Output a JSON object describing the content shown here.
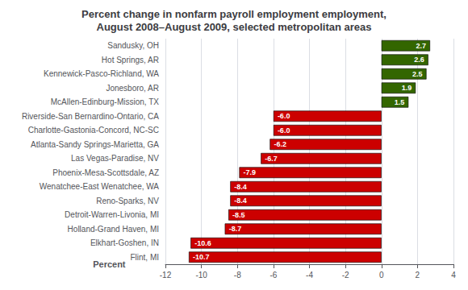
{
  "chart_data": {
    "type": "bar",
    "orientation": "horizontal",
    "title": "Percent change in nonfarm payroll employment employment,\nAugust 2008–August 2009, selected metropolitan areas",
    "xlabel": "Percent",
    "categories": [
      "Flint, MI",
      "Elkhart-Goshen, IN",
      "Holland-Grand Haven, MI",
      "Detroit-Warren-Livonia, MI",
      "Reno-Sparks, NV",
      "Wenatchee-East Wenatchee, WA",
      "Phoenix-Mesa-Scottsdale, AZ",
      "Las Vegas-Paradise, NV",
      "Atlanta-Sandy Springs-Marietta, GA",
      "Charlotte-Gastonia-Concord, NC-SC",
      "Riverside-San Bernardino-Ontario, CA",
      "McAllen-Edinburg-Mission, TX",
      "Jonesboro, AR",
      "Kennewick-Pasco-Richland, WA",
      "Hot Springs, AR",
      "Sandusky, OH"
    ],
    "values": [
      -10.7,
      -10.6,
      -8.7,
      -8.5,
      -8.4,
      -8.4,
      -7.9,
      -6.7,
      -6.2,
      -6.0,
      -6.0,
      1.5,
      1.9,
      2.5,
      2.6,
      2.7
    ],
    "value_labels": [
      "-10.7",
      "-10.6",
      "-8.7",
      "-8.5",
      "-8.4",
      "-8.4",
      "-7.9",
      "-6.7",
      "-6.2",
      "-6.0",
      "-6.0",
      "1.5",
      "1.9",
      "2.5",
      "2.6",
      "2.7"
    ],
    "colors": [
      "#cc0000",
      "#cc0000",
      "#cc0000",
      "#cc0000",
      "#cc0000",
      "#cc0000",
      "#cc0000",
      "#cc0000",
      "#cc0000",
      "#cc0000",
      "#cc0000",
      "#336600",
      "#336600",
      "#336600",
      "#336600",
      "#336600"
    ],
    "data_labels": true,
    "xlim": [
      -12,
      4
    ],
    "xticks": [
      -12,
      -10,
      -8,
      -6,
      -4,
      -2,
      0,
      2,
      4
    ],
    "grid": true
  }
}
